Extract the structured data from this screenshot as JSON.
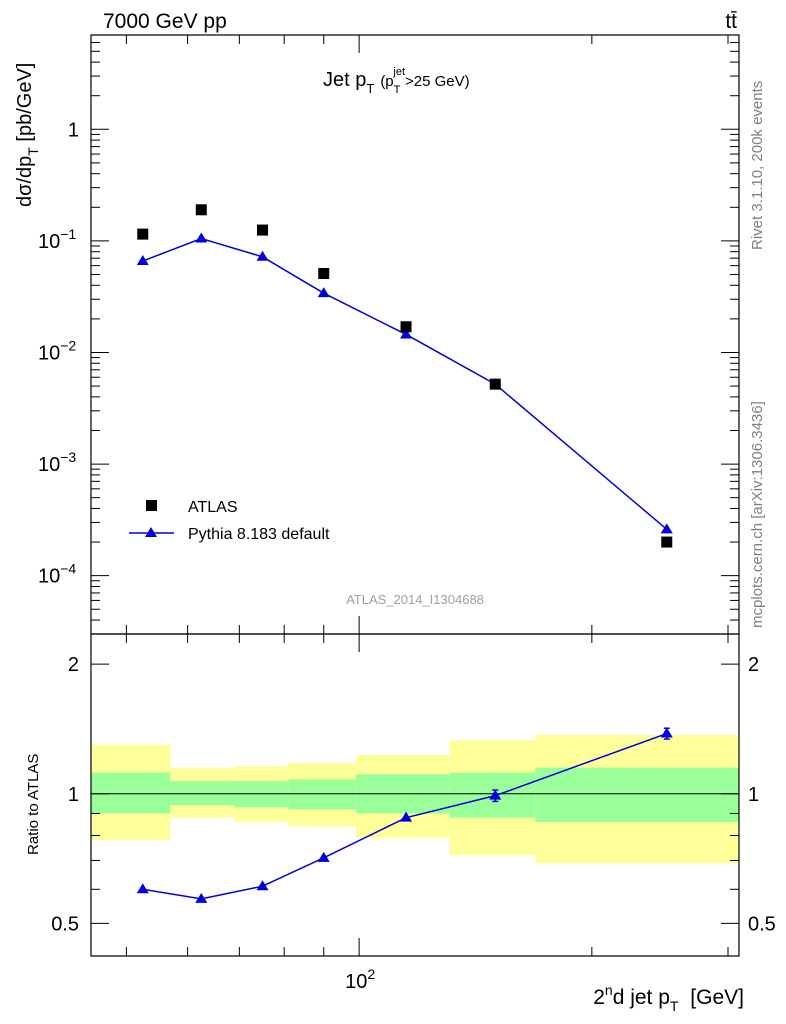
{
  "header": {
    "left": "7000 GeV pp",
    "right": "tt̄"
  },
  "side_labels": {
    "top": "Rivet 3.1.10,  200k events",
    "bottom": "mcplots.cern.ch [arXiv:1306.3436]"
  },
  "analysis_id": "ATLAS_2014_I1304688",
  "colors": {
    "mc": "#0000dd",
    "band_inner": "#99ff99",
    "band_outer": "#ffff99",
    "data": "#000000"
  },
  "chart_data": [
    {
      "type": "scatter",
      "title": "Jet p",
      "title_sub": "T",
      "title_cut": "(p",
      "title_cut_sub": "T",
      "title_cut_sup": "jet",
      "title_cut_tail": ">25 GeV)",
      "ylabel": "dσ/dp",
      "ylabel_sub": "T",
      "ylabel_tail": " [pb/GeV]",
      "yscale": "log",
      "xscale": "log",
      "xlim": [
        45,
        310
      ],
      "ylim": [
        3e-05,
        7
      ],
      "ytick_labels": [
        {
          "value": 1,
          "base": "1",
          "exp": ""
        },
        {
          "value": 0.1,
          "base": "10",
          "exp": "−1"
        },
        {
          "value": 0.01,
          "base": "10",
          "exp": "−2"
        },
        {
          "value": 0.001,
          "base": "10",
          "exp": "−3"
        },
        {
          "value": 0.0001,
          "base": "10",
          "exp": "−4"
        }
      ],
      "series": [
        {
          "name": "ATLAS",
          "marker": "square",
          "x": [
            52.5,
            62.5,
            75,
            90,
            115,
            150,
            250
          ],
          "y": [
            0.115,
            0.19,
            0.125,
            0.051,
            0.017,
            0.0052,
            0.0002
          ]
        },
        {
          "name": "Pythia 8.183 default",
          "marker": "triangle",
          "x": [
            52.5,
            62.5,
            75,
            90,
            115,
            150,
            250
          ],
          "y": [
            0.066,
            0.105,
            0.072,
            0.034,
            0.0145,
            0.0052,
            0.00026
          ]
        }
      ]
    },
    {
      "type": "line",
      "ylabel": "Ratio to ATLAS",
      "xlabel_pre": "2",
      "xlabel_sup": "n",
      "xlabel_mid": "d jet p",
      "xlabel_sub": "T",
      "xlabel_tail": " [GeV]",
      "xscale": "log",
      "xlim": [
        45,
        310
      ],
      "ylim": [
        0.42,
        2.35
      ],
      "xtick_labels": [
        {
          "value": 100,
          "base": "10",
          "exp": "2"
        }
      ],
      "ytick_labels": [
        {
          "value": 0.5,
          "label": "0.5"
        },
        {
          "value": 1,
          "label": "1"
        },
        {
          "value": 2,
          "label": "2"
        }
      ],
      "bins": [
        {
          "lo": 45,
          "hi": 57,
          "inner": [
            0.9,
            1.12
          ],
          "outer": [
            0.78,
            1.3
          ]
        },
        {
          "lo": 57,
          "hi": 69,
          "inner": [
            0.94,
            1.07
          ],
          "outer": [
            0.88,
            1.15
          ]
        },
        {
          "lo": 69,
          "hi": 81,
          "inner": [
            0.93,
            1.07
          ],
          "outer": [
            0.86,
            1.16
          ]
        },
        {
          "lo": 81,
          "hi": 99,
          "inner": [
            0.92,
            1.08
          ],
          "outer": [
            0.84,
            1.18
          ]
        },
        {
          "lo": 99,
          "hi": 131,
          "inner": [
            0.9,
            1.11
          ],
          "outer": [
            0.79,
            1.23
          ]
        },
        {
          "lo": 131,
          "hi": 169,
          "inner": [
            0.88,
            1.12
          ],
          "outer": [
            0.72,
            1.33
          ]
        },
        {
          "lo": 169,
          "hi": 310,
          "inner": [
            0.86,
            1.15
          ],
          "outer": [
            0.69,
            1.37
          ]
        }
      ],
      "series": [
        {
          "name": "Pythia 8.183 default",
          "x": [
            52.5,
            62.5,
            75,
            90,
            115,
            150,
            250
          ],
          "y": [
            0.6,
            0.57,
            0.61,
            0.71,
            0.88,
            0.99,
            1.38
          ],
          "err": [
            0,
            0,
            0,
            0,
            0,
            0.03,
            0.04
          ]
        }
      ]
    }
  ]
}
